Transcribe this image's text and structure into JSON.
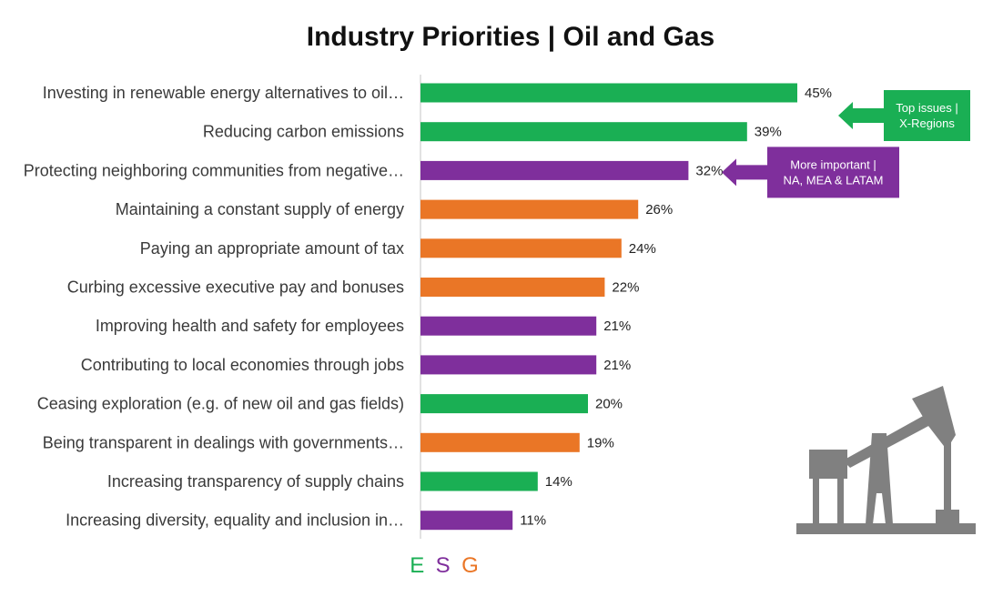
{
  "chart_data": {
    "type": "bar",
    "orientation": "horizontal",
    "title": "Industry Priorities | Oil and Gas",
    "categories": [
      "Investing in renewable energy alternatives to oil…",
      "Reducing carbon emissions",
      "Protecting neighboring communities from negative…",
      "Maintaining a constant supply of energy",
      "Paying an appropriate amount of tax",
      "Curbing excessive executive pay and bonuses",
      "Improving health and safety for employees",
      "Contributing to local economies through jobs",
      "Ceasing exploration (e.g. of new oil and gas fields)",
      "Being transparent in dealings with governments…",
      "Increasing transparency of supply chains",
      "Increasing diversity, equality and inclusion in…"
    ],
    "values": [
      45,
      39,
      32,
      26,
      24,
      22,
      21,
      21,
      20,
      19,
      14,
      11
    ],
    "value_labels": [
      "45%",
      "39%",
      "32%",
      "26%",
      "24%",
      "22%",
      "21%",
      "21%",
      "20%",
      "19%",
      "14%",
      "11%"
    ],
    "groups": [
      "E",
      "E",
      "S",
      "G",
      "G",
      "G",
      "S",
      "S",
      "E",
      "G",
      "E",
      "S"
    ],
    "xlim": [
      0,
      50
    ],
    "legend": [
      {
        "key": "E",
        "label": "E",
        "color": "#1aaf54"
      },
      {
        "key": "S",
        "label": "S",
        "color": "#7f2f9c"
      },
      {
        "key": "G",
        "label": "G",
        "color": "#ea7626"
      }
    ],
    "annotations": [
      {
        "lines": [
          "Top issues |",
          "X-Regions"
        ],
        "color": "#1aaf54",
        "points_to": "Investing in renewable energy alternatives to oil…"
      },
      {
        "lines": [
          "More important |",
          "NA, MEA & LATAM"
        ],
        "color": "#7f2f9c",
        "points_to": "Protecting neighboring communities from negative…"
      }
    ]
  },
  "icons": {
    "illustration": "oil-pumpjack-icon",
    "icon_color": "#808080"
  }
}
